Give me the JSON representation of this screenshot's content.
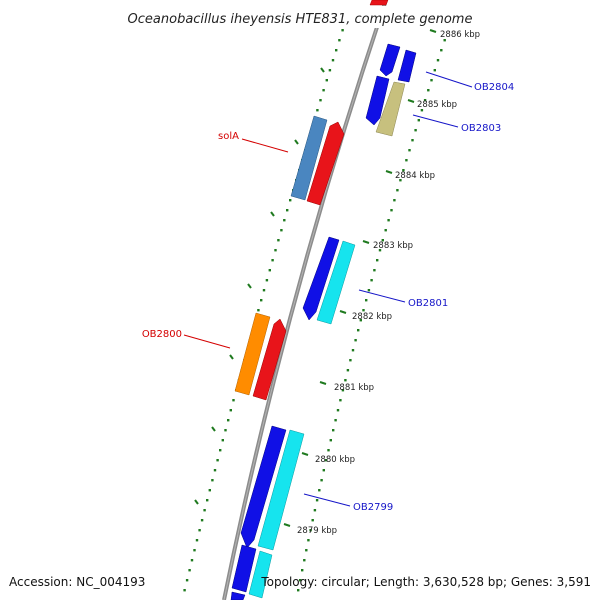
{
  "title": "Oceanobacillus iheyensis HTE831, complete genome",
  "footer": {
    "accession": "Accession: NC_004193",
    "topology": "Topology: circular; Length: 3,630,528 bp; Genes: 3,591"
  },
  "colors": {
    "backbone": "#8c8c8c",
    "tick": "#1f7a1f",
    "label_forward": "#d40000",
    "label_reverse": "#1515c8",
    "red": "#e8141a",
    "blue": "#1010e6",
    "cyan": "#16e4ee",
    "steelblue": "#4a86c0",
    "orange": "#ff8c00",
    "olive": "#c7c07e"
  },
  "ticks": [
    "2886 kbp",
    "2885 kbp",
    "2884 kbp",
    "2883 kbp",
    "2882 kbp",
    "2881 kbp",
    "2880 kbp",
    "2879 kbp"
  ],
  "gene_labels": [
    {
      "text": "OB2804",
      "strand": "reverse"
    },
    {
      "text": "OB2803",
      "strand": "reverse"
    },
    {
      "text": "solA",
      "strand": "forward"
    },
    {
      "text": "OB2801",
      "strand": "reverse"
    },
    {
      "text": "OB2800",
      "strand": "forward"
    },
    {
      "text": "OB2799",
      "strand": "reverse"
    }
  ]
}
